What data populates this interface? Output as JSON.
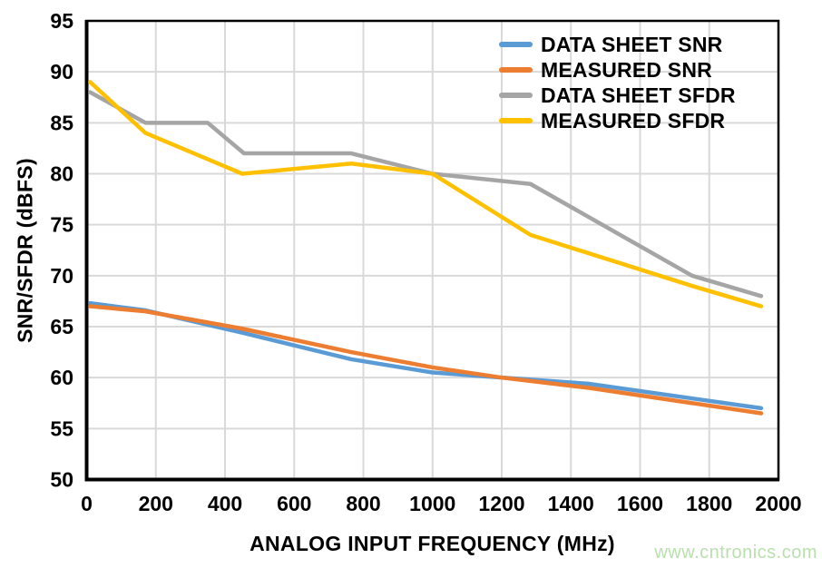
{
  "watermark": {
    "text": "www.cntronics.com",
    "color": "#B9E0AD"
  },
  "colors": {
    "background": "#FFFFFF",
    "grid": "#D9D9D9",
    "axis": "#000000",
    "text": "#000000"
  },
  "chart_data": {
    "type": "line",
    "title": "",
    "xlabel": "ANALOG INPUT FREQUENCY (MHz)",
    "ylabel": "SNR/SFDR (dBFS)",
    "xlim": [
      0,
      2000
    ],
    "ylim": [
      50,
      95
    ],
    "x_ticks": [
      0,
      200,
      400,
      600,
      800,
      1000,
      1200,
      1400,
      1600,
      1800,
      2000
    ],
    "y_ticks": [
      50,
      55,
      60,
      65,
      70,
      75,
      80,
      85,
      90,
      95
    ],
    "grid": true,
    "legend_position": "top-right-inside",
    "line_width": 4.5,
    "series": [
      {
        "name": "DATA SHEET SNR",
        "color": "#5B9BD5",
        "x": [
          10,
          170,
          450,
          765,
          1000,
          1200,
          1450,
          1950
        ],
        "y": [
          67.3,
          66.6,
          64.4,
          61.8,
          60.5,
          60.0,
          59.4,
          57.0
        ]
      },
      {
        "name": "MEASURED SNR",
        "color": "#ED7D31",
        "x": [
          10,
          170,
          450,
          765,
          1000,
          1200,
          1450,
          1950
        ],
        "y": [
          67.0,
          66.5,
          64.8,
          62.5,
          61.0,
          60.0,
          59.0,
          56.5
        ]
      },
      {
        "name": "DATA SHEET SFDR",
        "color": "#A5A5A5",
        "x": [
          10,
          170,
          350,
          455,
          765,
          1000,
          1283,
          1750,
          1950
        ],
        "y": [
          88,
          85,
          85,
          82,
          82,
          80,
          79,
          70,
          68
        ]
      },
      {
        "name": "MEASURED SFDR",
        "color": "#FFC000",
        "x": [
          10,
          170,
          450,
          765,
          1000,
          1283,
          1750,
          1950
        ],
        "y": [
          89,
          84,
          80,
          81,
          80,
          74,
          69,
          67
        ]
      }
    ]
  }
}
